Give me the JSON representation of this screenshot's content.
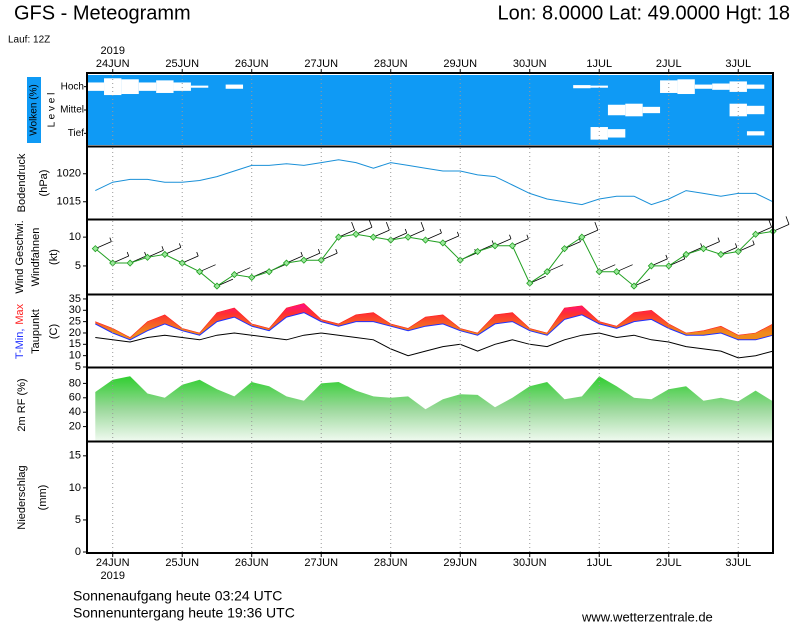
{
  "header": {
    "title": "GFS - Meteogramm",
    "location": "Lon: 8.0000 Lat: 49.0000 Hgt: 18",
    "run": "Lauf: 12Z",
    "year": "2019"
  },
  "footer": {
    "sunrise": "Sonnenaufgang heute 03:24 UTC",
    "sunset": "Sonnenuntergang heute 19:36 UTC",
    "source": "www.wetterzentrale.de"
  },
  "chart_data": [
    {
      "type": "cloud",
      "ylabel": "Wolken (%)",
      "ylabel2": "L e v e l",
      "color": "#0f9af5",
      "xlim": [
        -0.37,
        9.5
      ],
      "xticks": [
        {
          "value": 0,
          "label": "24JUN"
        },
        {
          "value": 1,
          "label": "25JUN"
        },
        {
          "value": 2,
          "label": "26JUN"
        },
        {
          "value": 3,
          "label": "27JUN"
        },
        {
          "value": 4,
          "label": "28JUN"
        },
        {
          "value": 5,
          "label": "29JUN"
        },
        {
          "value": 6,
          "label": "30JUN"
        },
        {
          "value": 7,
          "label": "1JUL"
        },
        {
          "value": 8,
          "label": "2JUL"
        },
        {
          "value": 9,
          "label": "3JUL"
        }
      ],
      "x": [
        -0.25,
        0,
        0.25,
        0.5,
        0.75,
        1,
        1.25,
        1.5,
        1.75,
        2,
        2.25,
        2.5,
        2.75,
        3,
        3.25,
        3.5,
        3.75,
        4,
        4.25,
        4.5,
        4.75,
        5,
        5.25,
        5.5,
        5.75,
        6,
        6.25,
        6.5,
        6.75,
        7,
        7.25,
        7.5,
        7.75,
        8,
        8.25,
        8.5,
        8.75,
        9,
        9.25,
        9.5
      ],
      "series": [
        {
          "name": "Hoch",
          "color": "#ffffff",
          "values": [
            40,
            80,
            70,
            40,
            60,
            40,
            10,
            0,
            20,
            0,
            0,
            0,
            0,
            0,
            0,
            0,
            0,
            0,
            0,
            0,
            0,
            0,
            0,
            0,
            0,
            0,
            0,
            0,
            15,
            10,
            0,
            0,
            0,
            60,
            70,
            20,
            30,
            50,
            20,
            0
          ]
        },
        {
          "name": "Mittel",
          "color": "#ffffff",
          "values": [
            0,
            0,
            0,
            0,
            0,
            0,
            0,
            0,
            0,
            0,
            0,
            0,
            0,
            0,
            0,
            0,
            0,
            0,
            0,
            0,
            0,
            0,
            0,
            0,
            0,
            0,
            0,
            0,
            0,
            0,
            50,
            60,
            30,
            0,
            0,
            0,
            0,
            60,
            40,
            0
          ]
        },
        {
          "name": "Tief",
          "color": "#ffffff",
          "values": [
            0,
            0,
            0,
            0,
            0,
            0,
            0,
            0,
            0,
            0,
            0,
            0,
            0,
            0,
            0,
            0,
            0,
            0,
            0,
            0,
            0,
            0,
            0,
            0,
            0,
            0,
            0,
            0,
            0,
            60,
            40,
            0,
            0,
            0,
            0,
            0,
            0,
            0,
            20,
            0
          ]
        }
      ]
    },
    {
      "type": "line",
      "ylabel": "Bodendruck",
      "ylabel2": "(hPa)",
      "color": "#1a90d8",
      "xlim": [
        -0.37,
        9.5
      ],
      "xticks": [
        {
          "value": 0,
          "label": "24JUN"
        },
        {
          "value": 1,
          "label": "25JUN"
        },
        {
          "value": 2,
          "label": "26JUN"
        },
        {
          "value": 3,
          "label": "27JUN"
        },
        {
          "value": 4,
          "label": "28JUN"
        },
        {
          "value": 5,
          "label": "29JUN"
        },
        {
          "value": 6,
          "label": "30JUN"
        },
        {
          "value": 7,
          "label": "1JUL"
        },
        {
          "value": 8,
          "label": "2JUL"
        },
        {
          "value": 9,
          "label": "3JUL"
        }
      ],
      "x": [
        -0.25,
        0,
        0.25,
        0.5,
        0.75,
        1,
        1.25,
        1.5,
        1.75,
        2,
        2.25,
        2.5,
        2.75,
        3,
        3.25,
        3.5,
        3.75,
        4,
        4.25,
        4.5,
        4.75,
        5,
        5.25,
        5.5,
        5.75,
        6,
        6.25,
        6.5,
        6.75,
        7,
        7.25,
        7.5,
        7.75,
        8,
        8.25,
        8.5,
        8.75,
        9,
        9.25,
        9.5
      ],
      "ylim": [
        1012.1,
        1024.6
      ],
      "yticks": [
        1015,
        1020
      ],
      "values": [
        1017,
        1018.5,
        1019,
        1019,
        1018.5,
        1018.5,
        1018.8,
        1019.5,
        1020.5,
        1021.5,
        1021.5,
        1021.8,
        1021.5,
        1022,
        1022.5,
        1022,
        1021,
        1022,
        1021.5,
        1021,
        1020.5,
        1020.5,
        1019.8,
        1019.5,
        1018,
        1016.5,
        1015.5,
        1015,
        1014.5,
        1015.5,
        1016,
        1016,
        1014.5,
        1015.5,
        1017,
        1016.5,
        1016,
        1016.5,
        1016.5,
        1015
      ]
    },
    {
      "type": "wind",
      "ylabel": "Wind Geschwi.",
      "ylabel2": "(kt)",
      "ylabel3": "Windfahnen",
      "color": "#22a022",
      "xlim": [
        -0.37,
        9.5
      ],
      "xticks": [
        {
          "value": 0,
          "label": "24JUN"
        },
        {
          "value": 1,
          "label": "25JUN"
        },
        {
          "value": 2,
          "label": "26JUN"
        },
        {
          "value": 3,
          "label": "27JUN"
        },
        {
          "value": 4,
          "label": "28JUN"
        },
        {
          "value": 5,
          "label": "29JUN"
        },
        {
          "value": 6,
          "label": "30JUN"
        },
        {
          "value": 7,
          "label": "1JUL"
        },
        {
          "value": 8,
          "label": "2JUL"
        },
        {
          "value": 9,
          "label": "3JUL"
        }
      ],
      "x": [
        -0.25,
        0,
        0.25,
        0.5,
        0.75,
        1,
        1.25,
        1.5,
        1.75,
        2,
        2.25,
        2.5,
        2.75,
        3,
        3.25,
        3.5,
        3.75,
        4,
        4.25,
        4.5,
        4.75,
        5,
        5.25,
        5.5,
        5.75,
        6,
        6.25,
        6.5,
        6.75,
        7,
        7.25,
        7.5,
        7.75,
        8,
        8.25,
        8.5,
        8.75,
        9,
        9.25,
        9.5
      ],
      "ylim": [
        0.3,
        12.8
      ],
      "yticks": [
        5,
        10
      ],
      "values": [
        8,
        5.5,
        5.5,
        6.5,
        7,
        5.5,
        4,
        1.5,
        3.5,
        3,
        4,
        5.5,
        6,
        6,
        10,
        10.5,
        10,
        9.5,
        10,
        9.5,
        9,
        6,
        7.5,
        8.5,
        8.5,
        2,
        4,
        8,
        10,
        4,
        4,
        1.5,
        5,
        5,
        7,
        8,
        7,
        7.5,
        10.5,
        11
      ]
    },
    {
      "type": "temperature",
      "ylabel": "(C)",
      "xlim": [
        -0.37,
        9.5
      ],
      "xticks": [
        {
          "value": 0,
          "label": "24JUN"
        },
        {
          "value": 1,
          "label": "25JUN"
        },
        {
          "value": 2,
          "label": "26JUN"
        },
        {
          "value": 3,
          "label": "27JUN"
        },
        {
          "value": 4,
          "label": "28JUN"
        },
        {
          "value": 5,
          "label": "29JUN"
        },
        {
          "value": 6,
          "label": "30JUN"
        },
        {
          "value": 7,
          "label": "1JUL"
        },
        {
          "value": 8,
          "label": "2JUL"
        },
        {
          "value": 9,
          "label": "3JUL"
        }
      ],
      "x": [
        -0.25,
        0,
        0.25,
        0.5,
        0.75,
        1,
        1.25,
        1.5,
        1.75,
        2,
        2.25,
        2.5,
        2.75,
        3,
        3.25,
        3.5,
        3.75,
        4,
        4.25,
        4.5,
        4.75,
        5,
        5.25,
        5.5,
        5.75,
        6,
        6.25,
        6.5,
        6.75,
        7,
        7.25,
        7.5,
        7.75,
        8,
        8.25,
        8.5,
        8.75,
        9,
        9.25,
        9.5
      ],
      "ylim": [
        5,
        36.3
      ],
      "yticks": [
        5,
        10,
        15,
        20,
        25,
        30,
        35
      ],
      "series": [
        {
          "name": "T-Min,",
          "color": "#2030ff",
          "values": [
            24,
            20,
            17,
            21,
            24,
            21,
            19,
            25,
            27,
            23,
            21,
            27,
            29,
            25,
            23,
            25,
            25,
            23,
            21,
            23,
            24,
            21,
            19,
            24,
            25,
            21,
            19,
            26,
            28,
            24,
            22,
            25,
            26,
            22,
            19,
            19,
            20,
            17,
            17,
            19
          ]
        },
        {
          "name": "Max",
          "color": "#ff2020",
          "values": [
            25,
            22,
            18,
            25,
            28,
            22,
            20,
            29,
            31,
            24,
            22,
            31,
            33,
            26,
            24,
            28,
            29,
            24,
            22,
            27,
            28,
            22,
            20,
            28,
            29,
            22,
            20,
            31,
            32,
            25,
            23,
            29,
            30,
            24,
            20,
            21,
            23,
            19,
            20,
            24
          ]
        },
        {
          "name": "Taupunkt",
          "color": "#000000",
          "values": [
            18,
            17,
            16,
            18,
            19,
            18,
            17,
            19,
            20,
            19,
            18,
            17,
            19,
            20,
            19,
            18,
            17,
            13,
            10,
            12,
            14,
            15,
            12,
            15,
            17,
            15,
            14,
            17,
            19,
            20,
            18,
            19,
            17,
            16,
            14,
            13,
            12,
            9,
            10,
            12
          ]
        }
      ]
    },
    {
      "type": "area",
      "ylabel": "2m RF (%)",
      "color": "#18cc18",
      "xlim": [
        -0.37,
        9.5
      ],
      "xticks": [
        {
          "value": 0,
          "label": "24JUN"
        },
        {
          "value": 1,
          "label": "25JUN"
        },
        {
          "value": 2,
          "label": "26JUN"
        },
        {
          "value": 3,
          "label": "27JUN"
        },
        {
          "value": 4,
          "label": "28JUN"
        },
        {
          "value": 5,
          "label": "29JUN"
        },
        {
          "value": 6,
          "label": "30JUN"
        },
        {
          "value": 7,
          "label": "1JUL"
        },
        {
          "value": 8,
          "label": "2JUL"
        },
        {
          "value": 9,
          "label": "3JUL"
        }
      ],
      "x": [
        -0.25,
        0,
        0.25,
        0.5,
        0.75,
        1,
        1.25,
        1.5,
        1.75,
        2,
        2.25,
        2.5,
        2.75,
        3,
        3.25,
        3.5,
        3.75,
        4,
        4.25,
        4.5,
        4.75,
        5,
        5.25,
        5.5,
        5.75,
        6,
        6.25,
        6.5,
        6.75,
        7,
        7.25,
        7.5,
        7.75,
        8,
        8.25,
        8.5,
        8.75,
        9,
        9.25,
        9.5
      ],
      "ylim": [
        0,
        100
      ],
      "yticks": [
        20,
        40,
        60,
        80
      ],
      "values": [
        68,
        85,
        90,
        66,
        60,
        78,
        85,
        72,
        62,
        82,
        76,
        62,
        56,
        80,
        82,
        70,
        62,
        60,
        62,
        44,
        58,
        65,
        64,
        47,
        60,
        76,
        82,
        58,
        62,
        90,
        76,
        60,
        58,
        72,
        76,
        56,
        60,
        55,
        70,
        55
      ]
    },
    {
      "type": "bar",
      "ylabel": "Niederschlag",
      "ylabel2": "(mm)",
      "xlim": [
        -0.37,
        9.5
      ],
      "xticks": [
        {
          "value": 0,
          "label": "24JUN"
        },
        {
          "value": 1,
          "label": "25JUN"
        },
        {
          "value": 2,
          "label": "26JUN"
        },
        {
          "value": 3,
          "label": "27JUN"
        },
        {
          "value": 4,
          "label": "28JUN"
        },
        {
          "value": 5,
          "label": "29JUN"
        },
        {
          "value": 6,
          "label": "30JUN"
        },
        {
          "value": 7,
          "label": "1JUL"
        },
        {
          "value": 8,
          "label": "2JUL"
        },
        {
          "value": 9,
          "label": "3JUL"
        }
      ],
      "ylim": [
        0,
        17
      ],
      "yticks": [
        0,
        5,
        10,
        15
      ]
    }
  ]
}
